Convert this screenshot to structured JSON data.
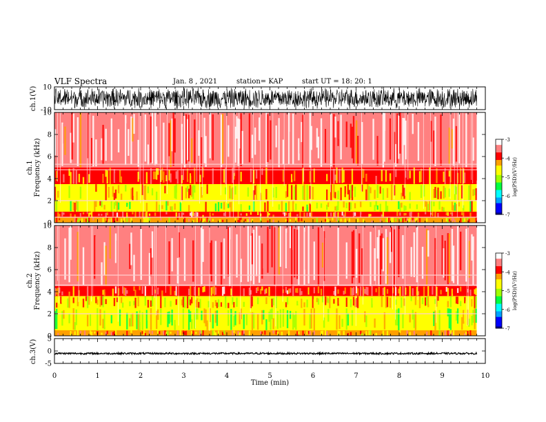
{
  "header": {
    "title": "VLF Spectra",
    "date": "Jan. 8 , 2021",
    "station": "station= KAP",
    "start": "start  UT =  18: 20: 1"
  },
  "colors": {
    "spectrum_scale": [
      "#00008b",
      "#0000ff",
      "#00a0ff",
      "#00ffff",
      "#00ff40",
      "#a0ff00",
      "#ffff00",
      "#ffa000",
      "#ff0000",
      "#ff8080",
      "#ffffff"
    ],
    "wave": "#000000"
  },
  "chart_data": [
    {
      "type": "line",
      "panel": "ch1-waveform",
      "ylabel": "ch.1(V)",
      "ylim": [
        -10,
        10
      ],
      "yticks": [
        "10",
        "-10"
      ],
      "xlim": [
        0,
        10
      ],
      "description": "dense noisy waveform, amplitude saturating near ±10 V, trace ends at ~9.8 min"
    },
    {
      "type": "heatmap",
      "panel": "ch1-spectrogram",
      "ylabel": "ch.1\nFrequency  (kHz)",
      "ylim": [
        0,
        10
      ],
      "yticks": [
        "0",
        "2",
        "4",
        "6",
        "8",
        "10"
      ],
      "xlim": [
        0,
        10
      ],
      "colorbar": {
        "label": "log(PSD)(V²/Hz)",
        "ticks": [
          "-3",
          "-4",
          "-5",
          "-6",
          "-7"
        ],
        "range": [
          -7,
          -3
        ]
      },
      "bands": [
        {
          "f_low": 0.0,
          "f_high": 0.5,
          "level": -4.2
        },
        {
          "f_low": 0.5,
          "f_high": 1.0,
          "level": -3.9
        },
        {
          "f_low": 1.0,
          "f_high": 2.0,
          "level": -4.7
        },
        {
          "f_low": 2.0,
          "f_high": 3.5,
          "level": -4.4
        },
        {
          "f_low": 3.5,
          "f_high": 5.0,
          "level": -4.0
        },
        {
          "f_low": 5.0,
          "f_high": 10.0,
          "level": -3.3
        }
      ],
      "lines_khz": [
        0.5,
        2.0,
        4.8,
        5.3
      ]
    },
    {
      "type": "heatmap",
      "panel": "ch2-spectrogram",
      "ylabel": "ch.2\nFrequency  (kHz)",
      "ylim": [
        0,
        10
      ],
      "yticks": [
        "0",
        "2",
        "4",
        "6",
        "8",
        "10"
      ],
      "xlim": [
        0,
        10
      ],
      "colorbar": {
        "label": "log(PSD)(V²/Hz)",
        "ticks": [
          "-3",
          "-4",
          "-5",
          "-6",
          "-7"
        ],
        "range": [
          -7,
          -3
        ]
      },
      "bands": [
        {
          "f_low": 0.0,
          "f_high": 0.5,
          "level": -4.1
        },
        {
          "f_low": 0.5,
          "f_high": 2.5,
          "level": -4.8
        },
        {
          "f_low": 2.5,
          "f_high": 3.6,
          "level": -4.4
        },
        {
          "f_low": 3.6,
          "f_high": 4.5,
          "level": -3.9
        },
        {
          "f_low": 4.5,
          "f_high": 10.0,
          "level": -3.3
        }
      ],
      "lines_khz": [
        2.0,
        4.6,
        5.5
      ]
    },
    {
      "type": "line",
      "panel": "ch3-waveform",
      "ylabel": "ch.3(V)",
      "ylim": [
        -5,
        5
      ],
      "yticks": [
        "5",
        "0",
        "-5"
      ],
      "xlim": [
        0,
        10
      ],
      "description": "near-constant trace at about -1 V with small ripple, ends at ~9.8 min"
    }
  ],
  "xaxis": {
    "label": "Time  (min)",
    "ticks": [
      "0",
      "1",
      "2",
      "3",
      "4",
      "5",
      "6",
      "7",
      "8",
      "9",
      "10"
    ]
  }
}
